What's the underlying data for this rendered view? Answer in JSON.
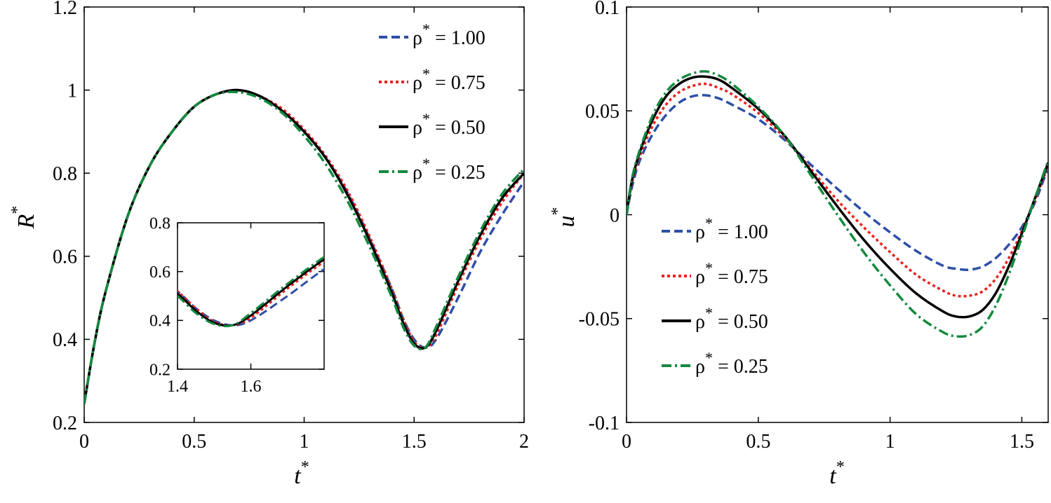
{
  "chart_data": [
    {
      "id": "left",
      "type": "line",
      "xlabel": "t",
      "xlabel_sup": "*",
      "ylabel": "R",
      "ylabel_sup": "*",
      "xlim": [
        0,
        2
      ],
      "ylim": [
        0.2,
        1.2
      ],
      "xticks": [
        0,
        0.5,
        1,
        1.5,
        2
      ],
      "xtick_labels": [
        "0",
        "0.5",
        "1",
        "1.5",
        "2"
      ],
      "yticks": [
        0.2,
        0.4,
        0.6,
        0.8,
        1.0,
        1.2
      ],
      "ytick_labels": [
        "0.2",
        "0.4",
        "0.6",
        "0.8",
        "1",
        "1.2"
      ],
      "legend_position": "top-right",
      "series": [
        {
          "name": "ρ* = 1.00",
          "sym": "ρ",
          "sup": "*",
          "val": " = 1.00",
          "color": "#2e4fa8",
          "dash": "12,6",
          "x": [
            0,
            0.05,
            0.1,
            0.2,
            0.3,
            0.4,
            0.5,
            0.6,
            0.7,
            0.8,
            0.9,
            1.0,
            1.1,
            1.2,
            1.3,
            1.4,
            1.45,
            1.5,
            1.55,
            1.6,
            1.7,
            1.8,
            1.9,
            2.0
          ],
          "y": [
            0.245,
            0.4,
            0.52,
            0.7,
            0.82,
            0.9,
            0.96,
            0.99,
            1.0,
            0.985,
            0.95,
            0.9,
            0.835,
            0.75,
            0.64,
            0.52,
            0.45,
            0.4,
            0.38,
            0.4,
            0.5,
            0.61,
            0.7,
            0.78
          ]
        },
        {
          "name": "ρ* = 0.75",
          "sym": "ρ",
          "sup": "*",
          "val": " = 0.75",
          "color": "#e8231e",
          "dash": "4,4",
          "x": [
            0,
            0.05,
            0.1,
            0.2,
            0.3,
            0.4,
            0.5,
            0.6,
            0.7,
            0.8,
            0.9,
            1.0,
            1.1,
            1.2,
            1.3,
            1.4,
            1.45,
            1.5,
            1.55,
            1.6,
            1.7,
            1.8,
            1.9,
            2.0
          ],
          "y": [
            0.245,
            0.4,
            0.52,
            0.7,
            0.82,
            0.9,
            0.96,
            0.99,
            1.0,
            0.985,
            0.955,
            0.905,
            0.84,
            0.755,
            0.645,
            0.52,
            0.45,
            0.395,
            0.38,
            0.41,
            0.53,
            0.64,
            0.73,
            0.8
          ]
        },
        {
          "name": "ρ* = 0.50",
          "sym": "ρ",
          "sup": "*",
          "val": " = 0.50",
          "color": "#000000",
          "dash": "",
          "x": [
            0,
            0.05,
            0.1,
            0.2,
            0.3,
            0.4,
            0.5,
            0.6,
            0.7,
            0.8,
            0.9,
            1.0,
            1.1,
            1.2,
            1.3,
            1.4,
            1.45,
            1.5,
            1.55,
            1.6,
            1.7,
            1.8,
            1.9,
            2.0
          ],
          "y": [
            0.245,
            0.4,
            0.52,
            0.7,
            0.82,
            0.9,
            0.96,
            0.99,
            1.0,
            0.985,
            0.95,
            0.9,
            0.835,
            0.745,
            0.635,
            0.51,
            0.44,
            0.39,
            0.38,
            0.42,
            0.54,
            0.65,
            0.74,
            0.8
          ]
        },
        {
          "name": "ρ* = 0.25",
          "sym": "ρ",
          "sup": "*",
          "val": " = 0.25",
          "color": "#138a3e",
          "dash": "14,5,3,5",
          "x": [
            0,
            0.05,
            0.1,
            0.2,
            0.3,
            0.4,
            0.5,
            0.6,
            0.7,
            0.8,
            0.9,
            1.0,
            1.1,
            1.2,
            1.3,
            1.4,
            1.45,
            1.5,
            1.55,
            1.6,
            1.7,
            1.8,
            1.9,
            2.0
          ],
          "y": [
            0.245,
            0.4,
            0.52,
            0.7,
            0.82,
            0.9,
            0.96,
            0.99,
            0.995,
            0.98,
            0.945,
            0.89,
            0.82,
            0.73,
            0.62,
            0.5,
            0.43,
            0.385,
            0.38,
            0.43,
            0.55,
            0.66,
            0.75,
            0.81
          ]
        }
      ],
      "inset": {
        "xlim": [
          1.4,
          1.8
        ],
        "ylim": [
          0.2,
          0.8
        ],
        "xticks": [
          1.4,
          1.6
        ],
        "xtick_labels": [
          "1.4",
          "1.6"
        ],
        "yticks": [
          0.2,
          0.4,
          0.6,
          0.8
        ],
        "ytick_labels": [
          "0.2",
          "0.4",
          "0.6",
          "0.8"
        ]
      }
    },
    {
      "id": "right",
      "type": "line",
      "xlabel": "t",
      "xlabel_sup": "*",
      "ylabel": "u",
      "ylabel_sup": "*",
      "xlim": [
        0,
        1.6
      ],
      "ylim": [
        -0.1,
        0.1
      ],
      "xticks": [
        0,
        0.5,
        1,
        1.5
      ],
      "xtick_labels": [
        "0",
        "0.5",
        "1",
        "1.5"
      ],
      "yticks": [
        -0.1,
        -0.05,
        0,
        0.05,
        0.1
      ],
      "ytick_labels": [
        "-0.1",
        "-0.05",
        "0",
        "0.05",
        "0.1"
      ],
      "legend_position": "middle-left",
      "series": [
        {
          "name": "ρ* = 1.00",
          "sym": "ρ",
          "sup": "*",
          "val": " = 1.00",
          "color": "#2e4fa8",
          "dash": "12,6",
          "x": [
            0,
            0.02,
            0.05,
            0.1,
            0.15,
            0.2,
            0.25,
            0.3,
            0.35,
            0.4,
            0.5,
            0.6,
            0.7,
            0.8,
            0.9,
            1.0,
            1.1,
            1.2,
            1.25,
            1.3,
            1.35,
            1.4,
            1.45,
            1.5,
            1.55,
            1.6
          ],
          "y": [
            0,
            0.013,
            0.026,
            0.039,
            0.048,
            0.054,
            0.057,
            0.0575,
            0.056,
            0.053,
            0.046,
            0.036,
            0.024,
            0.0125,
            0.0015,
            -0.0085,
            -0.0175,
            -0.0245,
            -0.026,
            -0.0265,
            -0.025,
            -0.021,
            -0.0145,
            -0.006,
            0.006,
            0.023
          ]
        },
        {
          "name": "ρ* = 0.75",
          "sym": "ρ",
          "sup": "*",
          "val": " = 0.75",
          "color": "#e8231e",
          "dash": "4,4",
          "x": [
            0,
            0.02,
            0.05,
            0.1,
            0.15,
            0.2,
            0.25,
            0.3,
            0.35,
            0.4,
            0.5,
            0.6,
            0.7,
            0.8,
            0.9,
            1.0,
            1.1,
            1.2,
            1.25,
            1.3,
            1.35,
            1.4,
            1.45,
            1.5,
            1.55,
            1.6
          ],
          "y": [
            0,
            0.015,
            0.028,
            0.043,
            0.053,
            0.059,
            0.062,
            0.063,
            0.061,
            0.058,
            0.049,
            0.037,
            0.022,
            0.007,
            -0.006,
            -0.018,
            -0.029,
            -0.0365,
            -0.039,
            -0.039,
            -0.037,
            -0.031,
            -0.021,
            -0.008,
            0.007,
            0.024
          ]
        },
        {
          "name": "ρ* = 0.50",
          "sym": "ρ",
          "sup": "*",
          "val": " = 0.50",
          "color": "#000000",
          "dash": "",
          "x": [
            0,
            0.02,
            0.05,
            0.1,
            0.15,
            0.2,
            0.25,
            0.3,
            0.35,
            0.4,
            0.5,
            0.6,
            0.7,
            0.8,
            0.9,
            1.0,
            1.1,
            1.2,
            1.25,
            1.3,
            1.35,
            1.4,
            1.45,
            1.5,
            1.55,
            1.6
          ],
          "y": [
            0,
            0.016,
            0.03,
            0.046,
            0.057,
            0.063,
            0.066,
            0.0665,
            0.065,
            0.061,
            0.051,
            0.038,
            0.021,
            0.004,
            -0.012,
            -0.026,
            -0.038,
            -0.0465,
            -0.049,
            -0.049,
            -0.046,
            -0.038,
            -0.025,
            -0.009,
            0.008,
            0.025
          ]
        },
        {
          "name": "ρ* = 0.25",
          "sym": "ρ",
          "sup": "*",
          "val": " = 0.25",
          "color": "#138a3e",
          "dash": "14,5,3,5",
          "x": [
            0,
            0.02,
            0.05,
            0.1,
            0.15,
            0.2,
            0.25,
            0.3,
            0.35,
            0.4,
            0.5,
            0.6,
            0.7,
            0.8,
            0.9,
            1.0,
            1.1,
            1.2,
            1.25,
            1.3,
            1.35,
            1.4,
            1.45,
            1.5,
            1.55,
            1.6
          ],
          "y": [
            0,
            0.017,
            0.031,
            0.048,
            0.059,
            0.065,
            0.068,
            0.069,
            0.067,
            0.063,
            0.052,
            0.038,
            0.019,
            0.0,
            -0.018,
            -0.034,
            -0.048,
            -0.0565,
            -0.0585,
            -0.058,
            -0.054,
            -0.044,
            -0.029,
            -0.011,
            0.008,
            0.026
          ]
        }
      ]
    }
  ]
}
